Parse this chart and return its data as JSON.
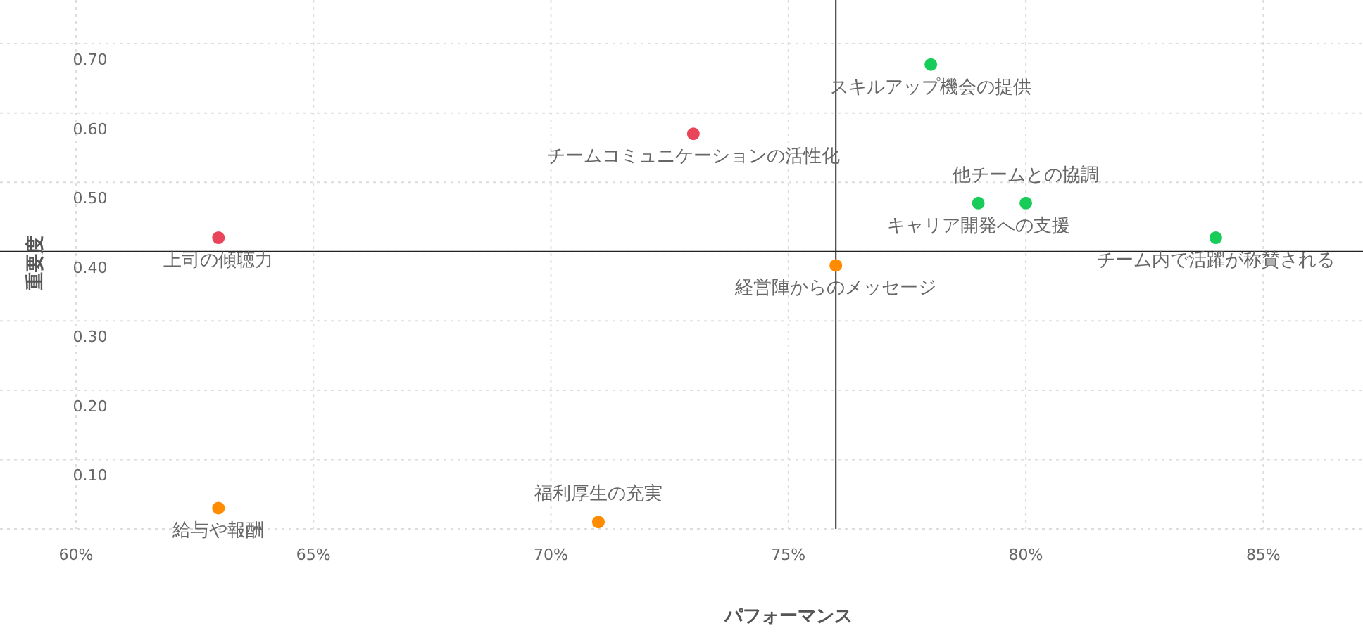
{
  "chart_data": {
    "type": "scatter",
    "xlabel": "パフォーマンス",
    "ylabel": "重要度",
    "xlim": [
      58.4,
      87.1
    ],
    "ylim": [
      0,
      0.763
    ],
    "xticks": [
      {
        "value": 60,
        "label": "60%"
      },
      {
        "value": 65,
        "label": "65%"
      },
      {
        "value": 70,
        "label": "70%"
      },
      {
        "value": 75,
        "label": "75%"
      },
      {
        "value": 80,
        "label": "80%"
      },
      {
        "value": 85,
        "label": "85%"
      }
    ],
    "yticks": [
      {
        "value": 0,
        "label": null
      },
      {
        "value": 0.1,
        "label": "0.10"
      },
      {
        "value": 0.2,
        "label": "0.20"
      },
      {
        "value": 0.3,
        "label": "0.30"
      },
      {
        "value": 0.4,
        "label": "0.40"
      },
      {
        "value": 0.5,
        "label": "0.50"
      },
      {
        "value": 0.6,
        "label": "0.60"
      },
      {
        "value": 0.7,
        "label": "0.70"
      }
    ],
    "grid": true,
    "marker": "circle",
    "series": [
      {
        "color": "#e8445a",
        "x": [
          73,
          63
        ],
        "values": [
          0.57,
          0.42
        ]
      },
      {
        "color": "#18cc5a",
        "x": [
          78,
          80,
          79,
          84
        ],
        "values": [
          0.67,
          0.47,
          0.47,
          0.42
        ]
      },
      {
        "color": "#ff8c00",
        "x": [
          76,
          71,
          63
        ],
        "values": [
          0.38,
          0.01,
          0.03
        ]
      }
    ],
    "ref_lines": [
      {
        "axis": "x",
        "value": 76,
        "color": "#222222"
      },
      {
        "axis": "y",
        "value": 0.4,
        "color": "#222222"
      }
    ],
    "annotations": [
      {
        "text": "チームコミュニケーションの活性化",
        "x": 73,
        "y": 0.57
      },
      {
        "text": "上司の傾聴力",
        "x": 63,
        "y": 0.42
      },
      {
        "text": "スキルアップ機会の提供",
        "x": 78,
        "y": 0.67
      },
      {
        "text": "他チームとの協調",
        "x": 80,
        "y": 0.47
      },
      {
        "text": "キャリア開発への支援",
        "x": 79,
        "y": 0.47
      },
      {
        "text": "チーム内で活躍が称賛される",
        "x": 84,
        "y": 0.42
      },
      {
        "text": "経営陣からのメッセージ",
        "x": 76,
        "y": 0.38
      },
      {
        "text": "福利厚生の充実",
        "x": 71,
        "y": 0.01
      },
      {
        "text": "給与や報酬",
        "x": 63,
        "y": 0.03
      }
    ]
  }
}
